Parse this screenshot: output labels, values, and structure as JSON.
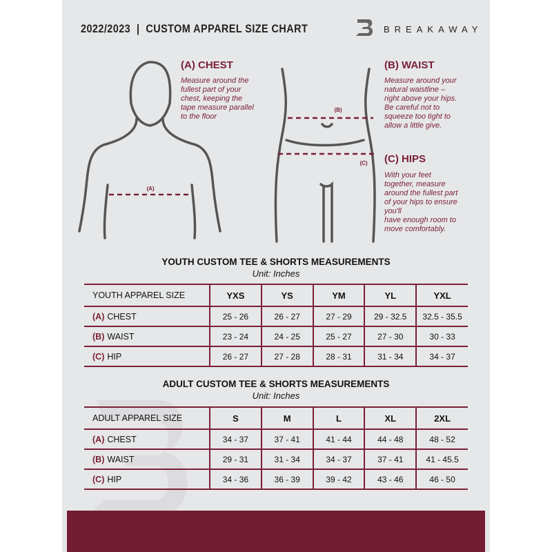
{
  "header": {
    "title": "2022/2023  |  CUSTOM APPAREL SIZE CHART",
    "brand": "BREAKAWAY"
  },
  "chest": {
    "heading": "(A) CHEST",
    "text": "Measure around the\nfullest part of your\nchest, keeping the\ntape measure parallel\nto the floor",
    "marker": "(A)"
  },
  "waist": {
    "heading": "(B) WAIST",
    "text": "Measure around your\nnatural waistline –\nright above your hips.\nBe careful not to\nsqueeze too tight to\nallow a little give.",
    "marker": "(B)"
  },
  "hips": {
    "heading": "(C) HIPS",
    "text": "With your feet\ntogether, measure\naround the fullest part\nof your hips to ensure\nyou'll\nhave enough room to\nmove comfortably.",
    "marker": "(C)"
  },
  "youth": {
    "heading": "YOUTH CUSTOM TEE & SHORTS MEASUREMENTS",
    "unit": "Unit: Inches",
    "columns": [
      "YOUTH APPAREL SIZE",
      "YXS",
      "YS",
      "YM",
      "YL",
      "YXL"
    ],
    "rows": [
      {
        "label": "(A)",
        "name": "CHEST",
        "values": [
          "25 - 26",
          "26 - 27",
          "27 - 29",
          "29 - 32.5",
          "32.5 - 35.5"
        ]
      },
      {
        "label": "(B)",
        "name": "WAIST",
        "values": [
          "23 - 24",
          "24 - 25",
          "25 - 27",
          "27 - 30",
          "30 - 33"
        ]
      },
      {
        "label": "(C)",
        "name": "HIP",
        "values": [
          "26 - 27",
          "27 - 28",
          "28 - 31",
          "31 - 34",
          "34 - 37"
        ]
      }
    ]
  },
  "adult": {
    "heading": "ADULT CUSTOM TEE & SHORTS MEASUREMENTS",
    "unit": "Unit: Inches",
    "columns": [
      "ADULT APPAREL SIZE",
      "S",
      "M",
      "L",
      "XL",
      "2XL"
    ],
    "rows": [
      {
        "label": "(A)",
        "name": "CHEST",
        "values": [
          "34 - 37",
          "37 - 41",
          "41 - 44",
          "44 - 48",
          "48 - 52"
        ]
      },
      {
        "label": "(B)",
        "name": "WAIST",
        "values": [
          "29 - 31",
          "31 - 34",
          "34 - 37",
          "37 - 41",
          "41 - 45.5"
        ]
      },
      {
        "label": "(C)",
        "name": "HIP",
        "values": [
          "34 - 36",
          "36 - 39",
          "39 - 42",
          "43 - 46",
          "46 - 50"
        ]
      }
    ]
  },
  "colors": {
    "accent": "#7a1f36",
    "footer": "#731c32",
    "panel": "#e6e7e8"
  }
}
